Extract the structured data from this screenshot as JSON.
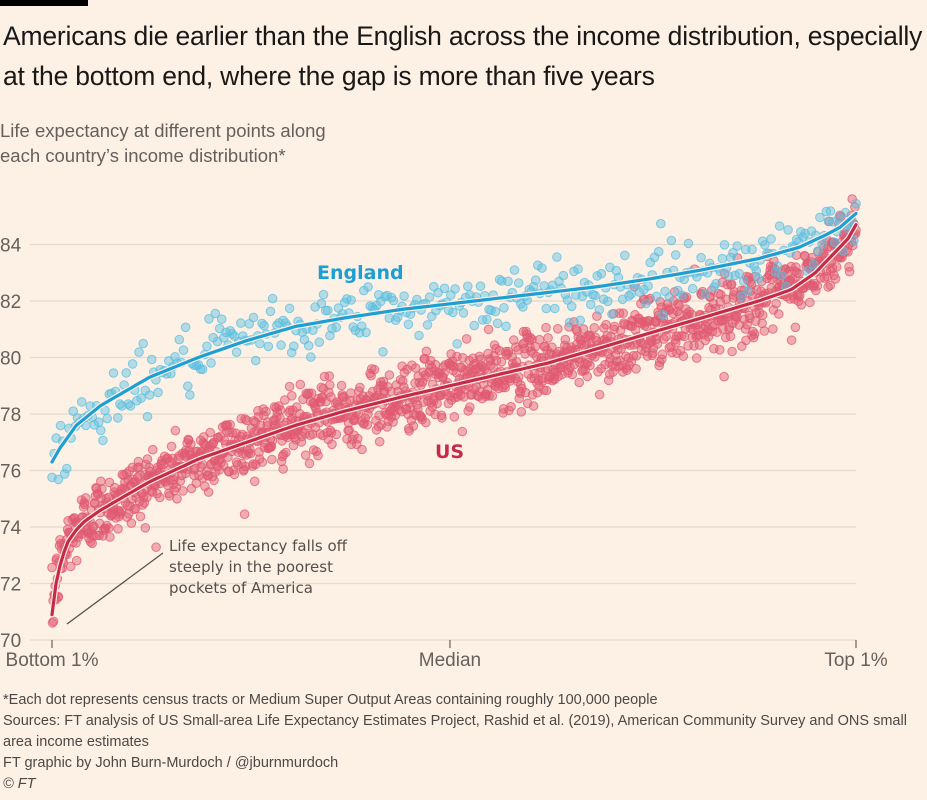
{
  "header": {
    "title": "Americans die earlier than the English across the income distribution, especially at the bottom end, where the gap is more than five years",
    "subtitle_line1": "Life expectancy at different points along",
    "subtitle_line2": "each country’s income distribution*"
  },
  "chart_data": {
    "type": "scatter",
    "title": "Americans die earlier than the English across the income distribution, especially at the bottom end, where the gap is more than five years",
    "ylabel": "Life expectancy at different points along each country’s income distribution*",
    "xlabel": "",
    "ylim": [
      70,
      86
    ],
    "yticks": [
      "70",
      "72",
      "74",
      "76",
      "78",
      "80",
      "82",
      "84"
    ],
    "ytick_values": [
      70,
      72,
      74,
      76,
      78,
      80,
      82,
      84
    ],
    "xlim": [
      1,
      100
    ],
    "xticks": [
      "Bottom 1%",
      "Median",
      "Top 1%"
    ],
    "xtick_values": [
      1,
      50,
      100
    ],
    "grid": true,
    "annotation": {
      "lines": [
        "Life expectancy falls off",
        "steeply in the poorest",
        "pockets of America"
      ],
      "points_to": {
        "x": 1,
        "y": 70.4
      }
    },
    "series": [
      {
        "name": "England",
        "label": "England",
        "color": "#1e9fd4",
        "dot_color": "#5bbfe0",
        "trend_x": [
          1,
          2,
          4,
          7,
          10,
          13,
          19,
          25,
          31,
          37,
          44,
          50,
          56,
          62,
          68,
          75,
          81,
          88,
          93,
          96,
          98,
          100
        ],
        "trend_y": [
          76.3,
          76.8,
          77.6,
          78.3,
          78.8,
          79.3,
          80.0,
          80.6,
          81.1,
          81.4,
          81.7,
          81.9,
          82.1,
          82.3,
          82.5,
          82.8,
          83.1,
          83.5,
          83.9,
          84.3,
          84.6,
          85.1
        ],
        "n_points": 380,
        "spread": 0.55
      },
      {
        "name": "US",
        "label": "US",
        "color": "#c62a4a",
        "dot_color": "#e05a70",
        "trend_x": [
          1,
          1.5,
          2.2,
          3,
          4,
          5,
          7,
          10,
          13,
          19,
          25,
          31,
          37,
          44,
          50,
          56,
          62,
          68,
          75,
          81,
          88,
          92,
          95,
          97,
          99,
          100
        ],
        "trend_y": [
          70.9,
          72.0,
          72.9,
          73.5,
          73.9,
          74.2,
          74.6,
          75.1,
          75.6,
          76.4,
          77.0,
          77.6,
          78.1,
          78.6,
          79.0,
          79.4,
          79.8,
          80.3,
          80.9,
          81.4,
          82.0,
          82.4,
          83.0,
          83.6,
          84.2,
          84.7
        ],
        "n_points": 1500,
        "spread": 0.6
      }
    ]
  },
  "footer": {
    "note": "*Each dot represents census tracts or Medium Super Output Areas containing roughly 100,000 people",
    "sources": "Sources: FT analysis of US Small-area Life Expectancy Estimates Project, Rashid et al. (2019), American Community Survey and ONS small area income estimates",
    "credit": "FT graphic by John Burn-Murdoch / @jburnmurdoch",
    "copyright": "© FT"
  }
}
